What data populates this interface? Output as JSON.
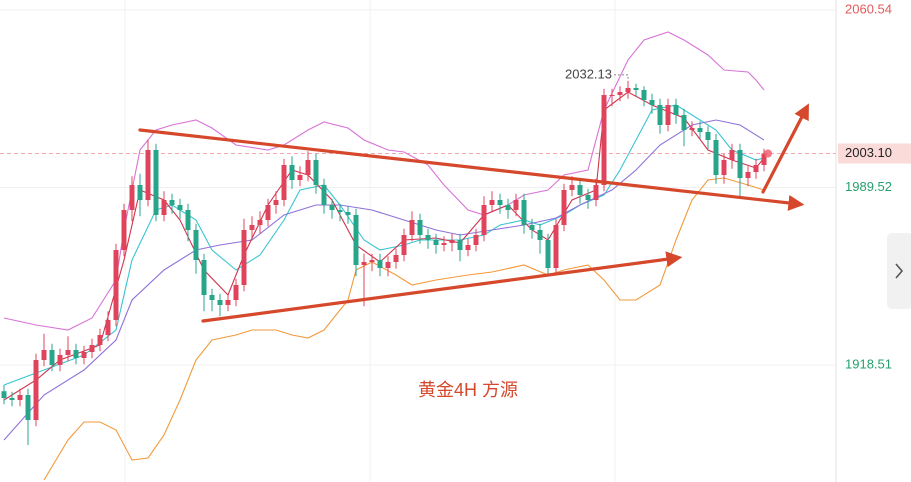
{
  "chart_data": {
    "type": "candlestick",
    "up_color": "#e0445c",
    "down_color": "#27a58a",
    "xlim": [
      -0.5,
      104
    ],
    "ylim": [
      1871.7,
      2064.5
    ],
    "yticks": [
      2060.54,
      1989.52,
      1918.51
    ],
    "ytick_colors": [
      "#e05a5a",
      "#26a06e",
      "#26a06e"
    ],
    "grid": true,
    "last_price": {
      "value": 2003.1,
      "label": "2003.10"
    },
    "peak_label": 2032.13,
    "peak_index": 78,
    "caption": "黄金4H  方源",
    "open": [
      1908.0,
      1905.3,
      1904.5,
      1906.5,
      1896.5,
      1920.5,
      1924.5,
      1918.5,
      1922.5,
      1924.5,
      1921.3,
      1923.7,
      1926.5,
      1930.5,
      1936.5,
      1964.5,
      1980.5,
      1990.5,
      1984.5,
      2004.5,
      1978.5,
      1984.5,
      1982.5,
      1980.5,
      1972.5,
      1960.5,
      1946.5,
      1944.5,
      1942.5,
      1944.5,
      1950.5,
      1972.5,
      1974.5,
      1976.5,
      1982.5,
      1984.5,
      1998.5,
      1992.5,
      1994.5,
      2000.5,
      1990.5,
      1982.5,
      1980.5,
      1979.7,
      1978.5,
      1958.5,
      1959.7,
      1960.5,
      1957.3,
      1959.7,
      1962.5,
      1970.5,
      1976.5,
      1970.5,
      1968.5,
      1966.5,
      1967.3,
      1968.5,
      1964.5,
      1966.5,
      1970.5,
      1982.5,
      1984.5,
      1982.5,
      1980.5,
      1984.5,
      1974.5,
      1972.5,
      1968.5,
      1957.3,
      1974.5,
      1988.5,
      1990.5,
      1986.5,
      1984.5,
      1990.5,
      2026.5,
      2026.5,
      2027.7,
      2029.3,
      2028.5,
      2024.5,
      2022.5,
      2014.5,
      2022.5,
      2018.5,
      2012.5,
      2013.3,
      2011.7,
      2008.5,
      1994.5,
      2000.5,
      2004.5,
      1993.3,
      1995.7,
      1998.5
    ],
    "high": [
      1910.5,
      1907.8,
      1909.0,
      1909.0,
      1923.0,
      1931.0,
      1927.0,
      1925.0,
      1930.0,
      1927.0,
      1926.2,
      1929.0,
      1933.0,
      1940.0,
      1967.0,
      1983.0,
      1994.0,
      1995.0,
      2008.5,
      2007.0,
      1988.0,
      1987.0,
      1985.0,
      1983.0,
      1975.0,
      1963.0,
      1949.0,
      1947.0,
      1947.0,
      1953.0,
      1977.0,
      1978.0,
      1980.0,
      1985.0,
      1988.0,
      2001.0,
      2002.0,
      1998.0,
      2004.0,
      2003.0,
      1993.0,
      1985.0,
      1983.0,
      1982.0,
      1981.0,
      1963.0,
      1963.0,
      1963.0,
      1962.0,
      1965.0,
      1973.0,
      1980.0,
      1979.0,
      1973.0,
      1971.0,
      1970.0,
      1971.0,
      1971.0,
      1969.0,
      1973.0,
      1986.0,
      1988.0,
      1987.0,
      1985.0,
      1987.0,
      1987.0,
      1977.0,
      1975.0,
      1971.0,
      1977.0,
      1991.0,
      1994.0,
      1993.0,
      1989.0,
      1993.0,
      2029.0,
      2029.0,
      2030.0,
      2032.13,
      2031.0,
      2030.0,
      2027.0,
      2025.0,
      2025.0,
      2025.0,
      2021.0,
      2016.0,
      2016.0,
      2014.0,
      2011.0,
      2003.0,
      2007.0,
      2007.0,
      1998.0,
      2001.0,
      2005.0
    ],
    "low": [
      1902.8,
      1902.0,
      1902.0,
      1886.5,
      1894.0,
      1918.0,
      1916.0,
      1916.0,
      1920.0,
      1918.8,
      1918.8,
      1921.2,
      1924.0,
      1928.0,
      1934.0,
      1962.0,
      1976.0,
      1978.0,
      1982.0,
      1976.0,
      1976.0,
      1979.0,
      1977.0,
      1968.0,
      1955.0,
      1940.0,
      1940.0,
      1938.0,
      1940.0,
      1942.0,
      1948.0,
      1969.0,
      1971.0,
      1974.0,
      1979.0,
      1982.0,
      1989.0,
      1990.0,
      1992.0,
      1987.0,
      1979.0,
      1977.0,
      1976.0,
      1975.0,
      1954.0,
      1942.0,
      1956.0,
      1954.0,
      1954.0,
      1957.0,
      1960.0,
      1968.0,
      1967.0,
      1965.0,
      1963.0,
      1964.0,
      1964.0,
      1960.0,
      1962.0,
      1964.0,
      1968.0,
      1980.0,
      1979.0,
      1977.0,
      1978.0,
      1971.0,
      1969.0,
      1963.0,
      1954.5,
      1955.0,
      1972.0,
      1986.0,
      1983.0,
      1981.0,
      1982.0,
      1988.0,
      2022.0,
      2024.0,
      2025.0,
      2026.0,
      2022.0,
      2019.0,
      2011.0,
      2012.0,
      2015.0,
      2006.0,
      2010.0,
      2009.0,
      2005.0,
      1991.0,
      1991.0,
      1997.0,
      1986.0,
      1990.0,
      1993.0,
      1996.0
    ],
    "close": [
      1905.3,
      1904.5,
      1906.5,
      1896.5,
      1920.5,
      1924.5,
      1918.5,
      1922.5,
      1924.5,
      1921.3,
      1923.7,
      1926.5,
      1930.5,
      1936.5,
      1964.5,
      1980.5,
      1990.5,
      1984.5,
      2004.5,
      1978.5,
      1984.5,
      1982.5,
      1980.5,
      1972.5,
      1960.5,
      1946.5,
      1944.5,
      1942.5,
      1944.5,
      1950.5,
      1972.5,
      1974.5,
      1976.5,
      1982.5,
      1984.5,
      1998.5,
      1992.5,
      1994.5,
      2000.5,
      1990.5,
      1982.5,
      1980.5,
      1979.7,
      1978.5,
      1958.5,
      1959.7,
      1960.5,
      1957.3,
      1959.7,
      1962.5,
      1970.5,
      1976.5,
      1970.5,
      1968.5,
      1966.5,
      1967.3,
      1968.5,
      1964.5,
      1966.5,
      1970.5,
      1982.5,
      1984.5,
      1982.5,
      1980.5,
      1984.5,
      1974.5,
      1972.5,
      1968.5,
      1957.3,
      1974.5,
      1988.5,
      1990.5,
      1986.5,
      1984.5,
      1990.5,
      2026.5,
      2026.5,
      2027.7,
      2029.3,
      2028.5,
      2024.5,
      2022.5,
      2014.5,
      2022.5,
      2018.5,
      2012.5,
      2013.3,
      2011.7,
      2008.5,
      1994.5,
      2000.5,
      2004.5,
      1993.3,
      1995.7,
      1998.5,
      2003.1
    ],
    "overlays": [
      {
        "color": "#d873d8",
        "x": [
          0,
          4,
          8,
          11,
          14,
          15,
          17,
          19,
          21,
          24,
          26,
          29,
          33,
          35,
          38,
          40,
          43,
          45,
          48,
          50,
          53,
          55,
          58,
          60,
          63,
          65,
          68,
          70,
          73,
          75,
          78,
          80,
          83,
          85,
          88,
          90,
          93,
          94,
          95
        ],
        "values": [
          1937.3,
          1934.5,
          1932.5,
          1937.3,
          1952.5,
          1972.5,
          2004.5,
          2012.5,
          2014.5,
          2016.5,
          2013.3,
          2006.5,
          2004.5,
          2006.5,
          2012.5,
          2015.7,
          2013.3,
          2008.5,
          2004.5,
          2003.7,
          1998.5,
          1990.5,
          1980.5,
          1978.5,
          1982.5,
          1986.5,
          1988.5,
          1994.5,
          1996.5,
          2020.5,
          2040.5,
          2048.5,
          2051.7,
          2048.5,
          2042.5,
          2036.5,
          2035.7,
          2032.5,
          2028.5
        ]
      },
      {
        "color": "#f29a3c",
        "x": [
          5,
          8,
          10,
          12,
          14,
          16,
          18,
          20,
          22,
          24,
          26,
          29,
          31,
          34,
          36,
          38,
          40,
          43,
          44,
          46,
          49,
          51,
          54,
          58,
          61,
          65,
          68,
          70,
          73,
          75,
          77,
          79,
          82,
          84,
          86,
          88,
          90,
          93,
          95
        ],
        "values": [
          1872.5,
          1888.5,
          1895.7,
          1895.7,
          1892.5,
          1880.5,
          1881.3,
          1890.5,
          1904.5,
          1920.5,
          1928.5,
          1930.5,
          1932.5,
          1932.5,
          1930.5,
          1929.3,
          1932.5,
          1944.5,
          1956.5,
          1959.7,
          1954.5,
          1950.5,
          1952.5,
          1954.5,
          1955.7,
          1958.5,
          1954.5,
          1956.5,
          1958.5,
          1952.5,
          1944.5,
          1944.5,
          1950.5,
          1968.5,
          1984.5,
          1992.5,
          1993.3,
          1990.5,
          1988.5
        ]
      },
      {
        "color": "#38c6d2",
        "x": [
          0,
          5,
          10,
          14,
          16,
          19,
          21,
          24,
          26,
          29,
          32,
          35,
          37,
          40,
          42,
          45,
          47,
          50,
          52,
          55,
          57,
          60,
          62,
          65,
          67,
          70,
          72,
          75,
          77,
          79,
          81,
          84,
          86,
          89,
          91,
          94,
          95
        ],
        "values": [
          1910.5,
          1916.5,
          1922.5,
          1932.5,
          1960.5,
          1980.5,
          1982.5,
          1976.5,
          1964.5,
          1956.5,
          1962.5,
          1976.5,
          1988.5,
          1990.5,
          1982.5,
          1968.5,
          1964.5,
          1966.5,
          1968.5,
          1968.5,
          1968.5,
          1970.5,
          1974.5,
          1976.5,
          1974.5,
          1978.5,
          1982.5,
          1986.5,
          1996.5,
          2008.5,
          2020.5,
          2022.5,
          2018.5,
          2012.5,
          2004.5,
          2000.5,
          2001.3
        ]
      },
      {
        "color": "#8f72d8",
        "x": [
          0,
          5,
          10,
          14,
          16,
          20,
          24,
          27,
          31,
          35,
          39,
          42,
          46,
          50,
          54,
          57,
          61,
          65,
          69,
          72,
          76,
          79,
          82,
          86,
          89,
          92,
          95
        ],
        "values": [
          1888.5,
          1906.5,
          1916.5,
          1928.5,
          1944.5,
          1956.5,
          1964.5,
          1966.5,
          1968.5,
          1978.5,
          1982.5,
          1982.5,
          1980.5,
          1976.5,
          1972.5,
          1970.5,
          1972.5,
          1974.5,
          1977.3,
          1982.5,
          1988.5,
          1996.5,
          2006.5,
          2014.5,
          2016.5,
          2014.5,
          2008.5
        ]
      },
      {
        "color": "#d0344e",
        "x": [
          0,
          4,
          7,
          12,
          15,
          17,
          20,
          22,
          25,
          28,
          30,
          33,
          36,
          38,
          41,
          44,
          47,
          50,
          54,
          57,
          60,
          63,
          66,
          68,
          71,
          74,
          75,
          78,
          81,
          85,
          88,
          91,
          94,
          95
        ],
        "values": [
          1904.5,
          1912.5,
          1920.5,
          1926.5,
          1960.5,
          1988.5,
          1984.5,
          1976.5,
          1956.5,
          1946.5,
          1962.5,
          1982.5,
          1996.5,
          1994.5,
          1984.5,
          1966.5,
          1959.7,
          1968.5,
          1969.3,
          1967.3,
          1978.5,
          1982.5,
          1972.5,
          1968.5,
          1984.5,
          1988.5,
          2020.5,
          2027.7,
          2022.5,
          2017.3,
          2004.5,
          2000.5,
          1997.3,
          2001.3
        ]
      }
    ]
  }
}
